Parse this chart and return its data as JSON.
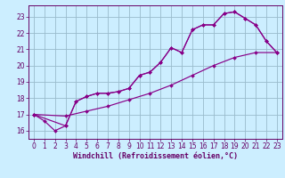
{
  "xlabel": "Windchill (Refroidissement éolien,°C)",
  "bg_color": "#cceeff",
  "line_color": "#880088",
  "grid_color": "#99bbcc",
  "axis_color": "#660066",
  "xlim": [
    -0.5,
    23.5
  ],
  "ylim": [
    15.5,
    23.7
  ],
  "xticks": [
    0,
    1,
    2,
    3,
    4,
    5,
    6,
    7,
    8,
    9,
    10,
    11,
    12,
    13,
    14,
    15,
    16,
    17,
    18,
    19,
    20,
    21,
    22,
    23
  ],
  "yticks": [
    16,
    17,
    18,
    19,
    20,
    21,
    22,
    23
  ],
  "line1_x": [
    0,
    1,
    2,
    3,
    4,
    5,
    6,
    7,
    8,
    9,
    10,
    11,
    12,
    13,
    14,
    15,
    16,
    17,
    18,
    19,
    20,
    21,
    22,
    23
  ],
  "line1_y": [
    17.0,
    16.6,
    16.0,
    16.3,
    17.8,
    18.1,
    18.3,
    18.3,
    18.4,
    18.6,
    19.4,
    19.6,
    20.2,
    21.1,
    20.8,
    22.2,
    22.5,
    22.5,
    23.2,
    23.3,
    22.9,
    22.5,
    21.5,
    20.8
  ],
  "line2_x": [
    0,
    3,
    4,
    5,
    6,
    7,
    8,
    9,
    10,
    11,
    12,
    13,
    14,
    15,
    16,
    17,
    18,
    19,
    20,
    21,
    22,
    23
  ],
  "line2_y": [
    17.0,
    16.3,
    17.8,
    18.1,
    18.3,
    18.3,
    18.4,
    18.6,
    19.4,
    19.6,
    20.2,
    21.1,
    20.8,
    22.2,
    22.5,
    22.5,
    23.2,
    23.3,
    22.9,
    22.5,
    21.5,
    20.8
  ],
  "line3_x": [
    0,
    3,
    5,
    7,
    9,
    11,
    13,
    15,
    17,
    19,
    21,
    23
  ],
  "line3_y": [
    17.0,
    16.9,
    17.2,
    17.5,
    17.9,
    18.3,
    18.8,
    19.4,
    20.0,
    20.5,
    20.8,
    20.8
  ],
  "font_size": 6.0,
  "tick_font_size": 5.5,
  "marker": "D",
  "marker_size": 2.0,
  "linewidth": 0.85
}
